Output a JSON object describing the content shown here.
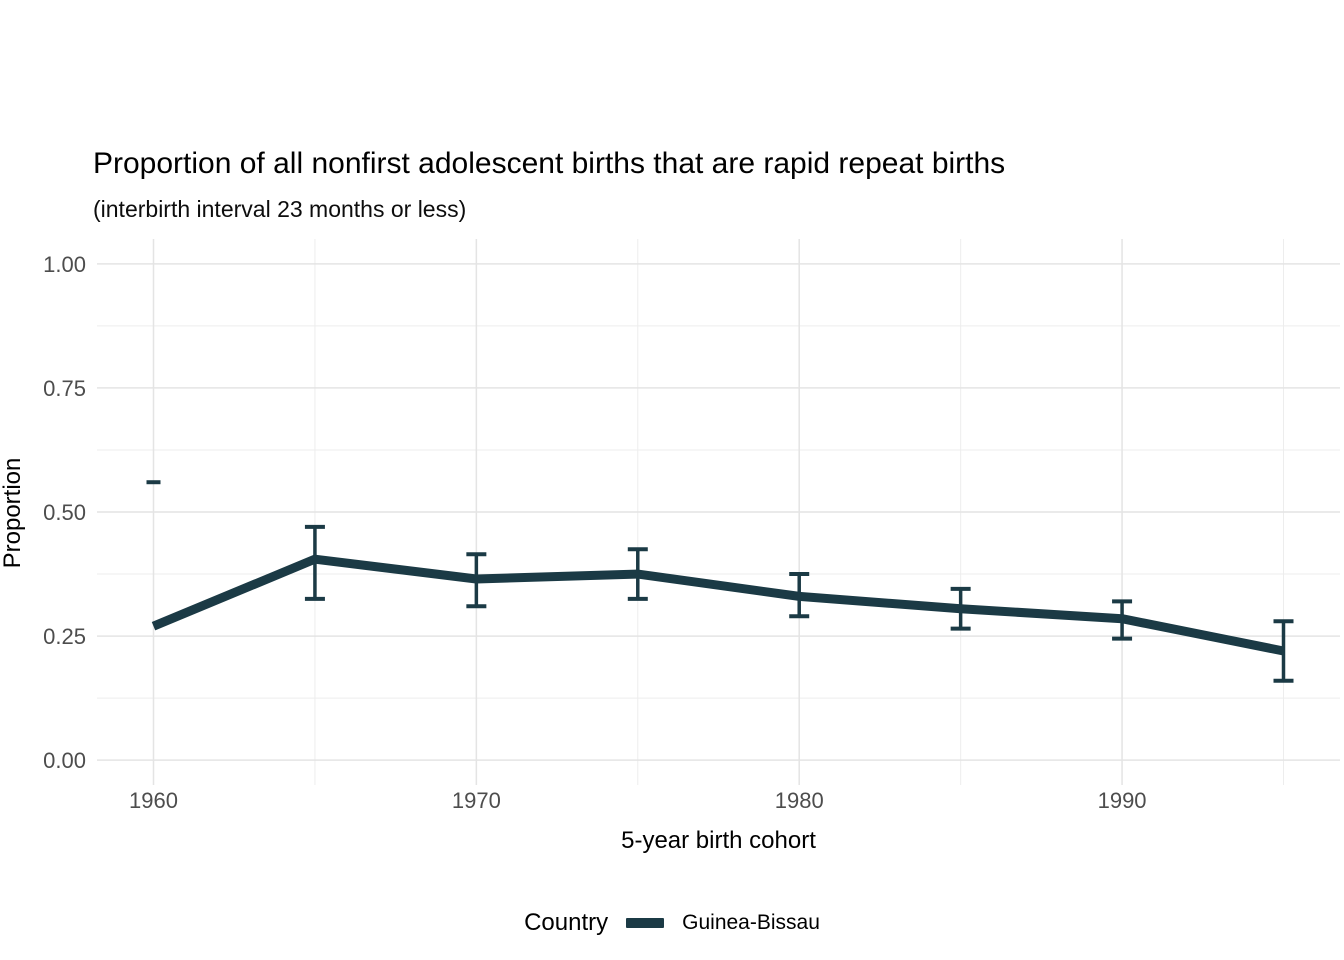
{
  "title": "Proportion of all nonfirst adolescent births that are rapid repeat births",
  "subtitle": "(interbirth interval 23 months or less)",
  "x_axis": {
    "label": "5-year birth cohort",
    "tick_labels": [
      "1960",
      "1970",
      "1980",
      "1990"
    ],
    "tick_values": [
      1960,
      1970,
      1980,
      1990
    ]
  },
  "y_axis": {
    "label": "Proportion",
    "tick_labels": [
      "0.00",
      "0.25",
      "0.50",
      "0.75",
      "1.00"
    ],
    "tick_values": [
      0,
      0.25,
      0.5,
      0.75,
      1.0
    ]
  },
  "legend": {
    "title": "Country",
    "items": [
      {
        "label": "Guinea-Bissau",
        "color": "#1b3a45"
      }
    ]
  },
  "colors": {
    "line": "#1b3a45",
    "grid_major": "#e4e4e4",
    "grid_minor": "#ededed",
    "tick_text": "#4d4d4d",
    "background": "#ffffff"
  },
  "chart_data": {
    "type": "line",
    "title": "Proportion of all nonfirst adolescent births that are rapid repeat births",
    "subtitle": "(interbirth interval 23 months or less)",
    "xlabel": "5-year birth cohort",
    "ylabel": "Proportion",
    "xlim": [
      1958.25,
      1996.75
    ],
    "ylim": [
      -0.05,
      1.05
    ],
    "grid": "on",
    "legend_position": "bottom",
    "x_major_gridlines": [
      1960,
      1970,
      1980,
      1990
    ],
    "x_minor_gridlines": [
      1965,
      1975,
      1985,
      1995
    ],
    "y_major_gridlines": [
      0,
      0.25,
      0.5,
      0.75,
      1.0
    ],
    "y_minor_gridlines": [
      0.125,
      0.375,
      0.625,
      0.875
    ],
    "series": [
      {
        "name": "Guinea-Bissau",
        "x": [
          1960,
          1965,
          1970,
          1975,
          1980,
          1985,
          1990,
          1995
        ],
        "y": [
          0.27,
          0.405,
          0.365,
          0.375,
          0.33,
          0.305,
          0.285,
          0.22
        ],
        "ci_low": [
          null,
          0.325,
          0.31,
          0.325,
          0.29,
          0.265,
          0.245,
          0.16
        ],
        "ci_high": [
          0.56,
          0.47,
          0.415,
          0.425,
          0.375,
          0.345,
          0.32,
          0.28
        ],
        "note": "At 1960 only a detached upper error-bar cap is drawn at 0.56 (no vertical bar or lower cap)."
      }
    ]
  }
}
